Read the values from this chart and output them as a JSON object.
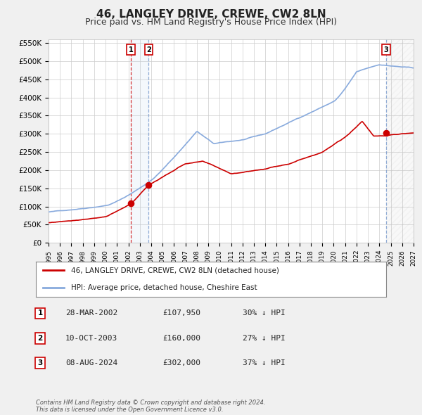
{
  "title": "46, LANGLEY DRIVE, CREWE, CW2 8LN",
  "subtitle": "Price paid vs. HM Land Registry's House Price Index (HPI)",
  "title_fontsize": 11,
  "subtitle_fontsize": 9,
  "ylabel_ticks": [
    "£0",
    "£50K",
    "£100K",
    "£150K",
    "£200K",
    "£250K",
    "£300K",
    "£350K",
    "£400K",
    "£450K",
    "£500K",
    "£550K"
  ],
  "ylabel_values": [
    0,
    50000,
    100000,
    150000,
    200000,
    250000,
    300000,
    350000,
    400000,
    450000,
    500000,
    550000
  ],
  "xlim": [
    1995,
    2027
  ],
  "ylim": [
    0,
    560000
  ],
  "background_color": "#f0f0f0",
  "plot_bg_color": "#ffffff",
  "grid_color": "#cccccc",
  "sale_color": "#cc0000",
  "hpi_color": "#88aadd",
  "sale_label": "46, LANGLEY DRIVE, CREWE, CW2 8LN (detached house)",
  "hpi_label": "HPI: Average price, detached house, Cheshire East",
  "t1_x": 2002.22,
  "t2_x": 2003.78,
  "t3_x": 2024.59,
  "t1_y": 107950,
  "t2_y": 160000,
  "t3_y": 302000,
  "transactions": [
    {
      "num": 1,
      "date": "28-MAR-2002",
      "price": "£107,950",
      "hpi": "30% ↓ HPI"
    },
    {
      "num": 2,
      "date": "10-OCT-2003",
      "price": "£160,000",
      "hpi": "27% ↓ HPI"
    },
    {
      "num": 3,
      "date": "08-AUG-2024",
      "price": "£302,000",
      "hpi": "37% ↓ HPI"
    }
  ],
  "footer": "Contains HM Land Registry data © Crown copyright and database right 2024.\nThis data is licensed under the Open Government Licence v3.0.",
  "sale_linewidth": 1.2,
  "hpi_linewidth": 1.2
}
